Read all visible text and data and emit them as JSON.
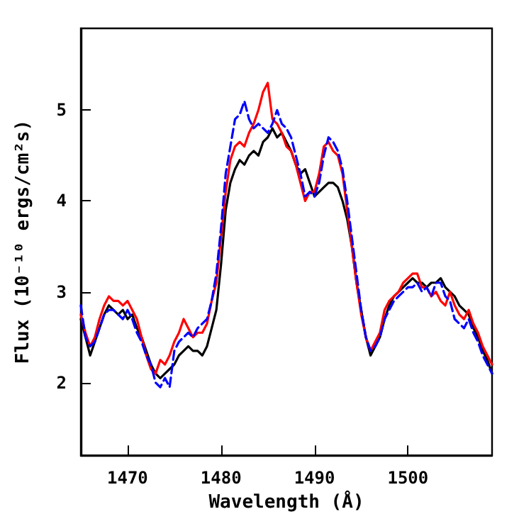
{
  "chart_data": {
    "type": "line",
    "xlabel": "Wavelength (Å)",
    "ylabel": "Flux (10⁻¹⁰ ergs/cm²s)",
    "xlim": [
      1465,
      1509
    ],
    "ylim": [
      1.2,
      5.9
    ],
    "xticks": [
      1470,
      1480,
      1490,
      1500
    ],
    "yticks": [
      2,
      3,
      4,
      5
    ],
    "grid": false,
    "marker": "none",
    "x": [
      1465,
      1465.5,
      1466,
      1466.5,
      1467,
      1467.5,
      1468,
      1468.5,
      1469,
      1469.5,
      1470,
      1470.5,
      1471,
      1471.5,
      1472,
      1472.5,
      1473,
      1473.5,
      1474,
      1474.5,
      1475,
      1475.5,
      1476,
      1476.5,
      1477,
      1477.5,
      1478,
      1478.5,
      1479,
      1479.5,
      1480,
      1480.5,
      1481,
      1481.5,
      1482,
      1482.5,
      1483,
      1483.5,
      1484,
      1484.5,
      1485,
      1485.5,
      1486,
      1486.5,
      1487,
      1487.5,
      1488,
      1488.5,
      1489,
      1489.5,
      1490,
      1490.5,
      1491,
      1491.5,
      1492,
      1492.5,
      1493,
      1493.5,
      1494,
      1494.5,
      1495,
      1495.5,
      1496,
      1496.5,
      1497,
      1497.5,
      1498,
      1498.5,
      1499,
      1499.5,
      1500,
      1500.5,
      1501,
      1501.5,
      1502,
      1502.5,
      1503,
      1503.5,
      1504,
      1504.5,
      1505,
      1505.5,
      1506,
      1506.5,
      1507,
      1507.5,
      1508,
      1508.5,
      1509
    ],
    "series": [
      {
        "color": "#000000",
        "line_style": "solid",
        "values": [
          2.7,
          2.5,
          2.3,
          2.45,
          2.6,
          2.75,
          2.85,
          2.8,
          2.75,
          2.8,
          2.7,
          2.75,
          2.6,
          2.5,
          2.35,
          2.2,
          2.1,
          2.05,
          2.1,
          2.15,
          2.2,
          2.3,
          2.35,
          2.4,
          2.35,
          2.35,
          2.3,
          2.4,
          2.6,
          2.8,
          3.3,
          3.9,
          4.2,
          4.35,
          4.45,
          4.4,
          4.5,
          4.55,
          4.5,
          4.65,
          4.7,
          4.8,
          4.7,
          4.75,
          4.65,
          4.55,
          4.4,
          4.3,
          4.35,
          4.2,
          4.05,
          4.1,
          4.15,
          4.2,
          4.2,
          4.15,
          4.0,
          3.8,
          3.5,
          3.1,
          2.8,
          2.5,
          2.3,
          2.4,
          2.5,
          2.7,
          2.85,
          2.95,
          3.0,
          3.05,
          3.1,
          3.15,
          3.1,
          3.1,
          3.05,
          3.1,
          3.1,
          3.15,
          3.05,
          3.0,
          2.95,
          2.85,
          2.8,
          2.75,
          2.6,
          2.5,
          2.35,
          2.25,
          2.1
        ]
      },
      {
        "color": "#ff0000",
        "line_style": "solid",
        "values": [
          2.75,
          2.55,
          2.4,
          2.5,
          2.7,
          2.85,
          2.95,
          2.9,
          2.9,
          2.85,
          2.9,
          2.8,
          2.7,
          2.5,
          2.3,
          2.15,
          2.1,
          2.25,
          2.2,
          2.3,
          2.45,
          2.55,
          2.7,
          2.6,
          2.5,
          2.55,
          2.55,
          2.65,
          2.9,
          3.1,
          3.6,
          4.1,
          4.45,
          4.6,
          4.65,
          4.6,
          4.75,
          4.85,
          5.0,
          5.2,
          5.3,
          4.9,
          4.85,
          4.75,
          4.6,
          4.55,
          4.4,
          4.2,
          4.0,
          4.1,
          4.1,
          4.3,
          4.6,
          4.65,
          4.55,
          4.5,
          4.3,
          3.9,
          3.5,
          3.1,
          2.75,
          2.5,
          2.35,
          2.45,
          2.55,
          2.8,
          2.9,
          2.95,
          3.0,
          3.1,
          3.15,
          3.2,
          3.2,
          3.05,
          3.05,
          2.95,
          3.0,
          2.9,
          2.85,
          3.0,
          2.85,
          2.75,
          2.7,
          2.8,
          2.65,
          2.55,
          2.4,
          2.3,
          2.2
        ]
      },
      {
        "color": "#0000ff",
        "line_style": "dashed",
        "values": [
          2.85,
          2.5,
          2.4,
          2.45,
          2.6,
          2.75,
          2.8,
          2.8,
          2.75,
          2.7,
          2.8,
          2.7,
          2.55,
          2.45,
          2.3,
          2.2,
          2.0,
          1.95,
          2.05,
          1.95,
          2.35,
          2.45,
          2.5,
          2.55,
          2.5,
          2.6,
          2.65,
          2.7,
          2.9,
          3.2,
          3.7,
          4.3,
          4.6,
          4.9,
          4.95,
          5.1,
          4.9,
          4.8,
          4.85,
          4.8,
          4.75,
          4.85,
          5.0,
          4.85,
          4.8,
          4.7,
          4.5,
          4.3,
          4.05,
          4.1,
          4.05,
          4.2,
          4.5,
          4.7,
          4.65,
          4.55,
          4.35,
          4.0,
          3.6,
          3.2,
          2.8,
          2.5,
          2.35,
          2.4,
          2.5,
          2.7,
          2.8,
          2.9,
          2.95,
          3.0,
          3.05,
          3.05,
          3.1,
          3.0,
          3.05,
          2.95,
          3.1,
          3.1,
          2.95,
          2.9,
          2.7,
          2.65,
          2.6,
          2.7,
          2.55,
          2.45,
          2.3,
          2.2,
          2.1
        ]
      }
    ]
  }
}
